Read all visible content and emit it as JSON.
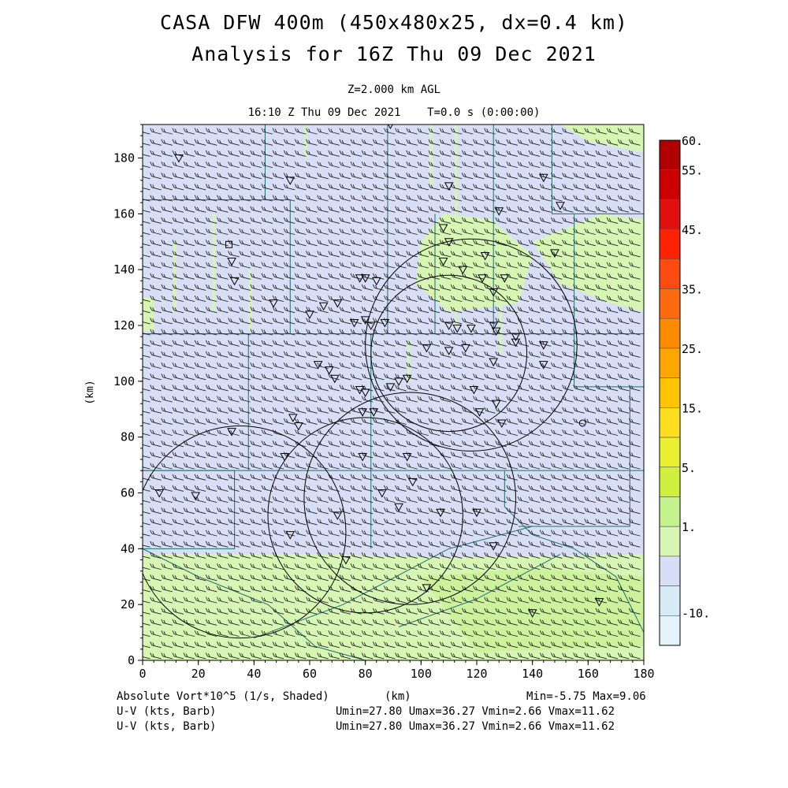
{
  "header": {
    "title_line1": "CASA DFW 400m (450x480x25, dx=0.4 km)",
    "title_line2": "Analysis for 16Z Thu 09 Dec 2021",
    "level": "Z=2.000 km AGL",
    "time_line": "16:10 Z Thu 09 Dec 2021    T=0.0 s (0:00:00)"
  },
  "footer": {
    "field1": "Absolute Vort*10^5 (1/s, Shaded)",
    "xunit": "(km)",
    "minmax": "Min=-5.75 Max=9.06",
    "field2": "U-V (kts, Barb)",
    "field3": "U-V (kts, Barb)",
    "uv_stats1": "Umin=27.80 Umax=36.27 Vmin=2.66 Vmax=11.62",
    "uv_stats2": "Umin=27.80 Umax=36.27 Vmin=2.66 Vmax=11.62"
  },
  "chart_data": {
    "type": "heatmap",
    "title": "CASA DFW 400m (450x480x25, dx=0.4 km)",
    "xlabel": "(km)",
    "ylabel": "(km)",
    "xlim": [
      0,
      180
    ],
    "ylim": [
      0,
      192
    ],
    "x_ticks": [
      "0",
      "20",
      "40",
      "60",
      "80",
      "100",
      "120",
      "140",
      "160",
      "180"
    ],
    "y_ticks": [
      "0",
      "20",
      "40",
      "60",
      "80",
      "100",
      "120",
      "140",
      "160",
      "180"
    ],
    "colorbar": {
      "labels": [
        "60.",
        "55.",
        "45.",
        "35.",
        "25.",
        "15.",
        "5.",
        "1.",
        "-10."
      ],
      "colors": [
        "#b00000",
        "#cc0000",
        "#e01010",
        "#ff2200",
        "#ff4a10",
        "#ff6a10",
        "#ff8c00",
        "#ffa500",
        "#ffc400",
        "#ffde20",
        "#e8f030",
        "#d0f040",
        "#c4f28c",
        "#d7f6b4",
        "#d8def6",
        "#d8ecf8",
        "#e4f4fb"
      ]
    },
    "shading_regions": [
      {
        "name": "southern high-vorticity band",
        "y_range": [
          0,
          38
        ],
        "level": "5."
      },
      {
        "name": "background",
        "y_range": [
          38,
          192
        ],
        "level": "1."
      }
    ],
    "wind_barbs": {
      "u_range": [
        27.8,
        36.27
      ],
      "v_range": [
        2.66,
        11.62
      ],
      "units": "kts"
    },
    "radar_rings": [
      {
        "center": [
          35,
          46
        ],
        "radius": 38
      },
      {
        "center": [
          80,
          52
        ],
        "radius": 35
      },
      {
        "center": [
          96,
          58
        ],
        "radius": 38
      },
      {
        "center": [
          118,
          113
        ],
        "radius": 38
      },
      {
        "center": [
          110,
          110
        ],
        "radius": 28
      }
    ]
  }
}
